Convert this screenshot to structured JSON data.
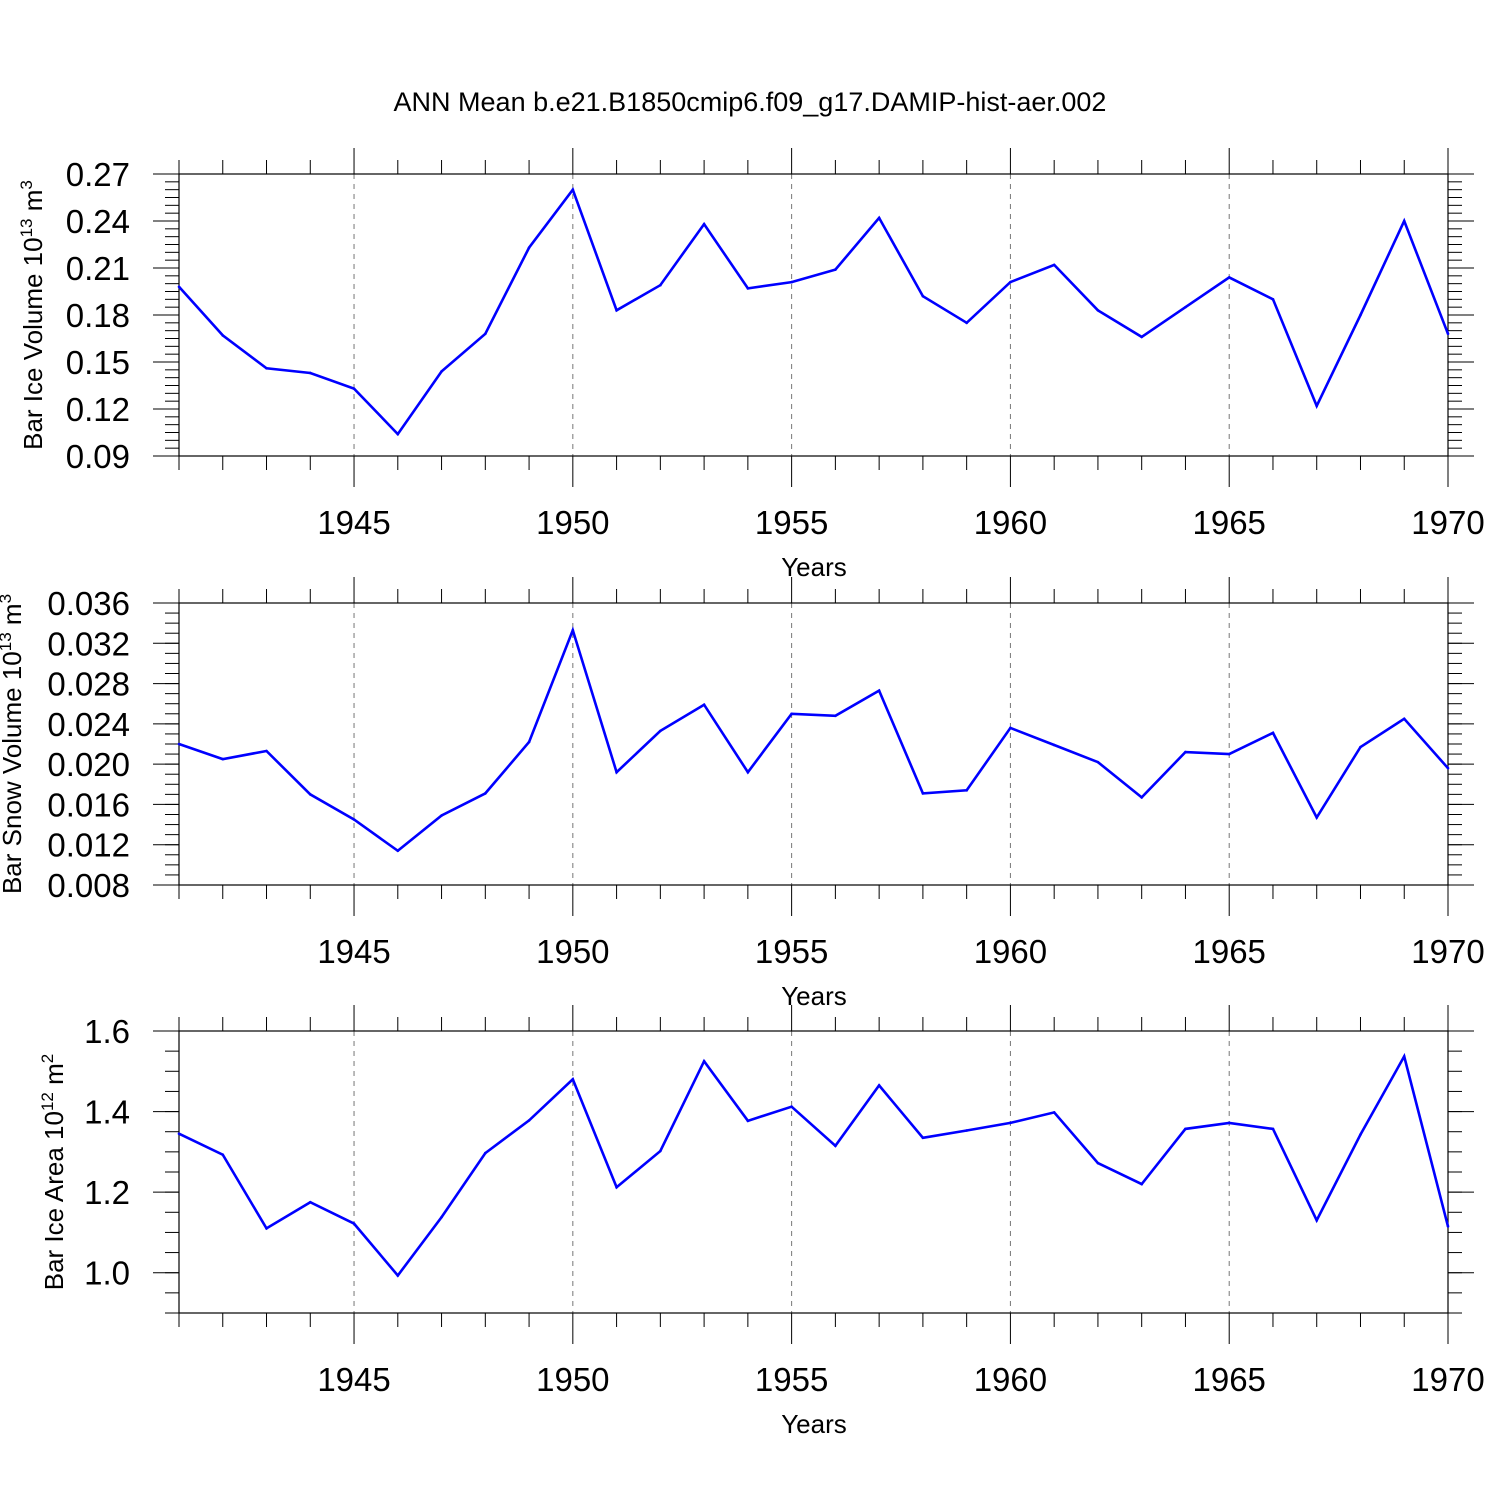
{
  "title": "ANN Mean b.e21.B1850cmip6.f09_g17.DAMIP-hist-aer.002",
  "colors": {
    "series": "#0000ff",
    "axis": "#000000",
    "grid": "#777777"
  },
  "chart_data": [
    {
      "type": "line",
      "ylabel_main": "Bar Ice Volume 10",
      "ylabel_exp": "13",
      "ylabel_unit": " m",
      "ylabel_unit_exp": "3",
      "xlabel": "Years",
      "xlim": [
        1941,
        1970
      ],
      "ylim": [
        0.09,
        0.27
      ],
      "xticks": [
        1945,
        1950,
        1955,
        1960,
        1965,
        1970
      ],
      "yticks": [
        "0.09",
        "0.12",
        "0.15",
        "0.18",
        "0.21",
        "0.24",
        "0.27"
      ],
      "x": [
        1941,
        1942,
        1943,
        1944,
        1945,
        1946,
        1947,
        1948,
        1949,
        1950,
        1951,
        1952,
        1953,
        1954,
        1955,
        1956,
        1957,
        1958,
        1959,
        1960,
        1961,
        1962,
        1963,
        1964,
        1965,
        1966,
        1967,
        1968,
        1969,
        1970
      ],
      "values": [
        0.198,
        0.167,
        0.146,
        0.143,
        0.133,
        0.104,
        0.144,
        0.168,
        0.223,
        0.26,
        0.183,
        0.199,
        0.238,
        0.197,
        0.201,
        0.209,
        0.242,
        0.192,
        0.175,
        0.201,
        0.212,
        0.183,
        0.166,
        0.185,
        0.204,
        0.19,
        0.122,
        0.18,
        0.24,
        0.168
      ]
    },
    {
      "type": "line",
      "ylabel_main": "Bar Snow Volume 10",
      "ylabel_exp": "13",
      "ylabel_unit": " m",
      "ylabel_unit_exp": "3",
      "xlabel": "Years",
      "xlim": [
        1941,
        1970
      ],
      "ylim": [
        0.008,
        0.036
      ],
      "xticks": [
        1945,
        1950,
        1955,
        1960,
        1965,
        1970
      ],
      "yticks": [
        "0.008",
        "0.012",
        "0.016",
        "0.020",
        "0.024",
        "0.028",
        "0.032",
        "0.036"
      ],
      "x": [
        1941,
        1942,
        1943,
        1944,
        1945,
        1946,
        1947,
        1948,
        1949,
        1950,
        1951,
        1952,
        1953,
        1954,
        1955,
        1956,
        1957,
        1958,
        1959,
        1960,
        1961,
        1962,
        1963,
        1964,
        1965,
        1966,
        1967,
        1968,
        1969,
        1970
      ],
      "values": [
        0.022,
        0.0205,
        0.0213,
        0.017,
        0.0145,
        0.0114,
        0.0149,
        0.0171,
        0.0222,
        0.0333,
        0.0192,
        0.0233,
        0.0259,
        0.0192,
        0.025,
        0.0248,
        0.0273,
        0.0171,
        0.0174,
        0.0236,
        0.0219,
        0.0202,
        0.0167,
        0.0212,
        0.021,
        0.0231,
        0.0147,
        0.0217,
        0.0245,
        0.0196
      ]
    },
    {
      "type": "line",
      "ylabel_main": "Bar Ice Area 10",
      "ylabel_exp": "12",
      "ylabel_unit": " m",
      "ylabel_unit_exp": "2",
      "xlabel": "Years",
      "xlim": [
        1941,
        1970
      ],
      "ylim": [
        0.9,
        1.6
      ],
      "xticks": [
        1945,
        1950,
        1955,
        1960,
        1965,
        1970
      ],
      "yticks": [
        "1.0",
        "1.2",
        "1.4",
        "1.6"
      ],
      "x": [
        1941,
        1942,
        1943,
        1944,
        1945,
        1946,
        1947,
        1948,
        1949,
        1950,
        1951,
        1952,
        1953,
        1954,
        1955,
        1956,
        1957,
        1958,
        1959,
        1960,
        1961,
        1962,
        1963,
        1964,
        1965,
        1966,
        1967,
        1968,
        1969,
        1970
      ],
      "values": [
        1.345,
        1.293,
        1.11,
        1.175,
        1.122,
        0.993,
        1.138,
        1.297,
        1.378,
        1.48,
        1.212,
        1.302,
        1.525,
        1.377,
        1.412,
        1.315,
        1.465,
        1.335,
        1.353,
        1.372,
        1.398,
        1.272,
        1.22,
        1.357,
        1.372,
        1.357,
        1.13,
        1.343,
        1.537,
        1.115
      ]
    }
  ]
}
